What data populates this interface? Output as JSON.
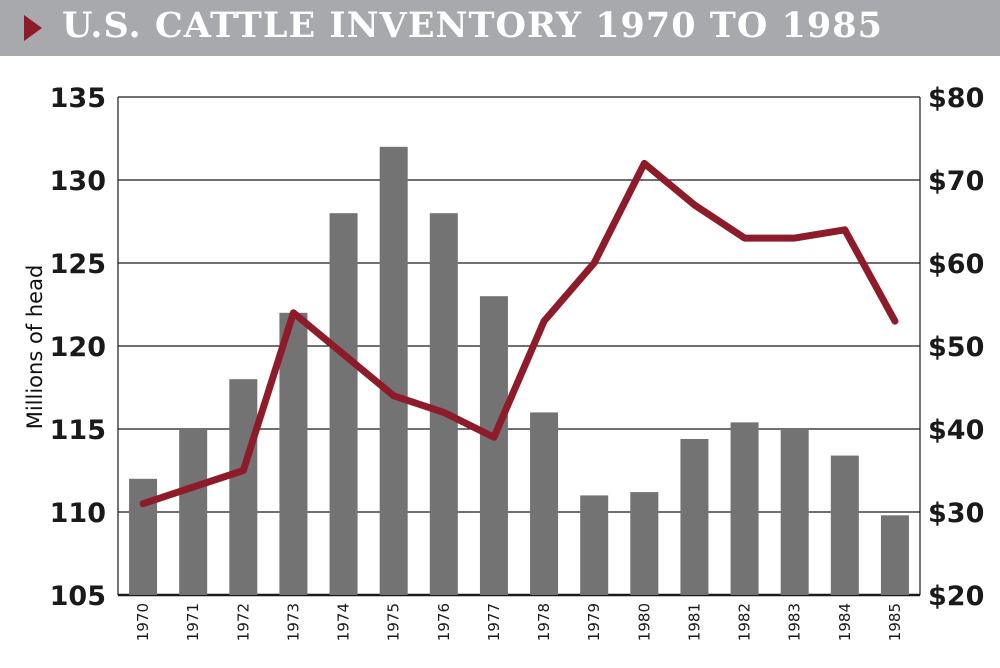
{
  "header": {
    "title": "U.S. CATTLE INVENTORY 1970 TO 1985",
    "icon": "triangle-right-icon"
  },
  "chart_data": {
    "type": "bar",
    "title": "U.S. CATTLE INVENTORY 1970 TO 1985",
    "categories": [
      "1970",
      "1971",
      "1972",
      "1973",
      "1974",
      "1975",
      "1976",
      "1977",
      "1978",
      "1979",
      "1980",
      "1981",
      "1982",
      "1983",
      "1984",
      "1985"
    ],
    "series": [
      {
        "type": "bar",
        "axis": "left",
        "color": "#737373",
        "values": [
          112,
          115,
          118,
          122,
          128,
          132,
          128,
          123,
          116,
          111,
          111.2,
          114.4,
          115.4,
          115,
          113.4,
          109.8
        ]
      },
      {
        "type": "line",
        "axis": "right",
        "color": "#8e1b2a",
        "values": [
          31,
          33,
          35,
          54,
          49,
          44,
          42,
          39,
          53,
          60,
          72,
          67,
          63,
          63,
          64,
          53
        ]
      }
    ],
    "ylabel": "Millions of head",
    "ylim": [
      105,
      135
    ],
    "yticks": [
      "135",
      "130",
      "125",
      "120",
      "115",
      "110",
      "105"
    ],
    "y2lim": [
      20,
      80
    ],
    "y2ticks": [
      "$80",
      "$70",
      "$60",
      "$50",
      "$40",
      "$30",
      "$20"
    ],
    "grid": true
  }
}
